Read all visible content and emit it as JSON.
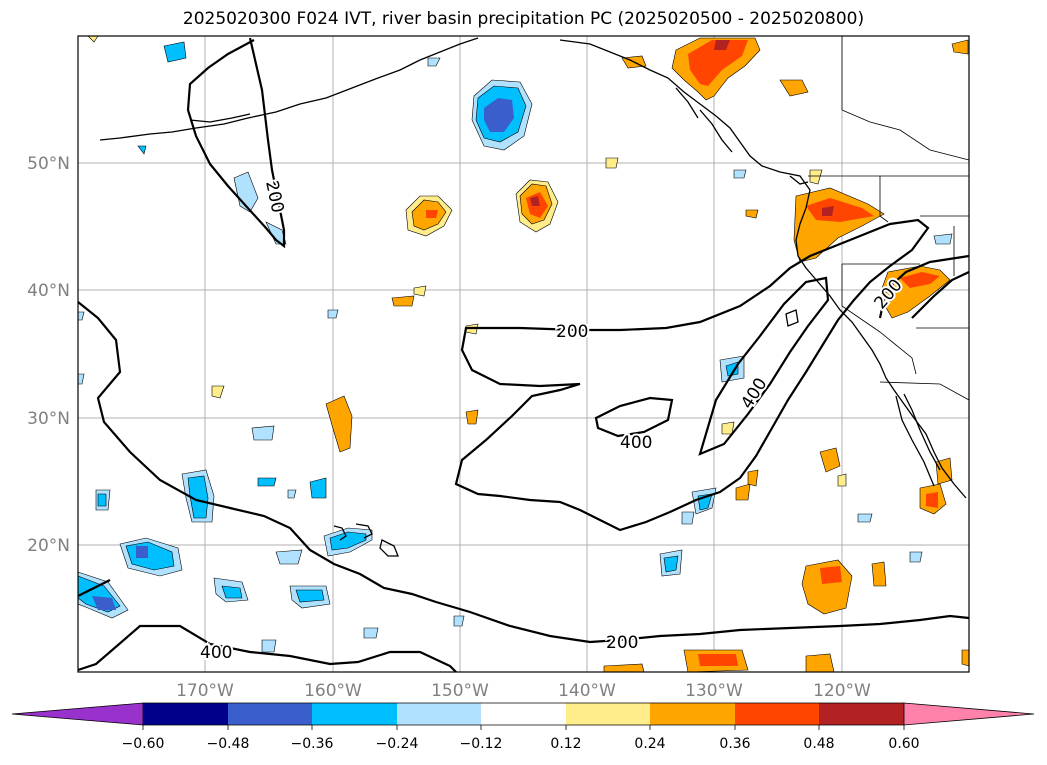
{
  "title": "2025020300 F024 IVT, river basin precipitation PC (2025020500 - 2025020800)",
  "lat_labels": [
    "50°N",
    "40°N",
    "30°N",
    "20°N"
  ],
  "lon_labels": [
    "170°W",
    "160°W",
    "150°W",
    "140°W",
    "130°W",
    "120°W"
  ],
  "contour_labels": [
    "200",
    "200",
    "400",
    "400",
    "200",
    "200",
    "400"
  ],
  "colorbar": {
    "colors": [
      "#9932cc",
      "#00008b",
      "#3a5fcd",
      "#00bfff",
      "#b0e2ff",
      "#ffffff",
      "#ffec8b",
      "#ffa500",
      "#ff4500",
      "#b22222",
      "#ff82ab"
    ],
    "ticks": [
      "−0.60",
      "−0.48",
      "−0.36",
      "−0.24",
      "−0.12",
      "0.12",
      "0.24",
      "0.36",
      "0.48",
      "0.60"
    ]
  }
}
